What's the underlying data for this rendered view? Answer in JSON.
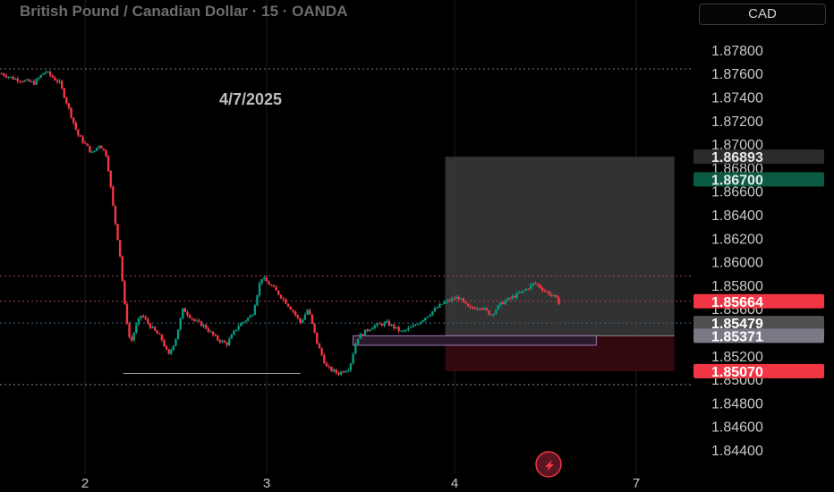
{
  "header": {
    "title": "British Pound / Canadian Dollar · 15 · OANDA",
    "currency_button": "CAD"
  },
  "annotation": {
    "date_label": "4/7/2025"
  },
  "icons": {
    "flash": "lightning-bolt-icon"
  },
  "colors": {
    "up": "#089981",
    "down": "#f23645",
    "background": "#000000",
    "target_zone": "#3b3b3b",
    "stop_zone": "#3a0a10"
  },
  "chart_data": {
    "type": "candlestick",
    "symbol": "British Pound / Canadian Dollar",
    "interval": "15",
    "source": "OANDA",
    "y_axis": {
      "ylim": [
        1.843,
        1.8885
      ],
      "ticks": [
        "1.84400",
        "1.84600",
        "1.84800",
        "1.85000",
        "1.85200",
        "1.85400",
        "1.85600",
        "1.85800",
        "1.86000",
        "1.86200",
        "1.86400",
        "1.86600",
        "1.86800",
        "1.87000",
        "1.87200",
        "1.87400",
        "1.87600",
        "1.87800"
      ]
    },
    "x_axis": {
      "ticks": [
        {
          "label": "2",
          "day": 2
        },
        {
          "label": "3",
          "day": 3
        },
        {
          "label": "4",
          "day": 4
        },
        {
          "label": "7",
          "day": 5
        }
      ],
      "range_days": [
        1.54,
        5.35
      ]
    },
    "price_labels": [
      {
        "value": "1.86893",
        "price": 1.86893,
        "bg": "#2b2b2b",
        "fg": "#e8e8e8"
      },
      {
        "value": "1.86700",
        "price": 1.867,
        "bg": "#0b5a44",
        "fg": "#e8e8e8"
      },
      {
        "value": "1.85664",
        "price": 1.85664,
        "bg": "#f23645",
        "fg": "#ffffff"
      },
      {
        "value": "1.85479",
        "price": 1.85479,
        "bg": "#505050",
        "fg": "#ffffff"
      },
      {
        "value": "1.85371",
        "price": 1.85371,
        "bg": "#7a7a86",
        "fg": "#ffffff"
      },
      {
        "value": "1.85070",
        "price": 1.8507,
        "bg": "#f23645",
        "fg": "#ffffff"
      }
    ],
    "levels": [
      {
        "price": 1.8764,
        "style": "dotted",
        "color": "#7a7a7a"
      },
      {
        "price": 1.8588,
        "style": "dotted",
        "color": "#9a4a52"
      },
      {
        "price": 1.85664,
        "style": "dotted",
        "color": "#b0404c"
      },
      {
        "price": 1.85479,
        "style": "dotted",
        "color": "#3a6a8a"
      },
      {
        "price": 1.84955,
        "style": "dotted",
        "color": "#8a8a8a"
      }
    ],
    "position": {
      "entry": 1.85371,
      "target": 1.86893,
      "stop": 1.8507,
      "start_day": 3.95,
      "end_day": 5.21
    },
    "zones": [
      {
        "from_day": 3.46,
        "to_day": 4.78,
        "top": 1.85371,
        "bottom": 1.8529,
        "fill": "#2a1a2c",
        "stroke": "#a37ab8"
      }
    ],
    "support_lines": [
      {
        "from_day": 2.21,
        "to_day": 3.18,
        "price": 1.8505
      }
    ],
    "candles_seed": 7,
    "waypoints": [
      [
        1.54,
        1.876
      ],
      [
        1.6,
        1.8756
      ],
      [
        1.72,
        1.8752
      ],
      [
        1.78,
        1.8762
      ],
      [
        1.86,
        1.8752
      ],
      [
        1.9,
        1.8735
      ],
      [
        1.96,
        1.8708
      ],
      [
        2.04,
        1.8692
      ],
      [
        2.08,
        1.87
      ],
      [
        2.12,
        1.869
      ],
      [
        2.16,
        1.864
      ],
      [
        2.19,
        1.861
      ],
      [
        2.22,
        1.856
      ],
      [
        2.25,
        1.853
      ],
      [
        2.28,
        1.8545
      ],
      [
        2.31,
        1.8555
      ],
      [
        2.36,
        1.8545
      ],
      [
        2.42,
        1.8535
      ],
      [
        2.46,
        1.852
      ],
      [
        2.5,
        1.8535
      ],
      [
        2.54,
        1.856
      ],
      [
        2.6,
        1.855
      ],
      [
        2.66,
        1.8545
      ],
      [
        2.72,
        1.8535
      ],
      [
        2.78,
        1.853
      ],
      [
        2.84,
        1.8545
      ],
      [
        2.92,
        1.8555
      ],
      [
        2.97,
        1.8587
      ],
      [
        3.02,
        1.858
      ],
      [
        3.08,
        1.857
      ],
      [
        3.14,
        1.8558
      ],
      [
        3.18,
        1.8548
      ],
      [
        3.22,
        1.856
      ],
      [
        3.27,
        1.853
      ],
      [
        3.32,
        1.851
      ],
      [
        3.38,
        1.8505
      ],
      [
        3.44,
        1.851
      ],
      [
        3.48,
        1.8535
      ],
      [
        3.56,
        1.8545
      ],
      [
        3.64,
        1.8548
      ],
      [
        3.72,
        1.854
      ],
      [
        3.78,
        1.8545
      ],
      [
        3.86,
        1.8555
      ],
      [
        3.94,
        1.8565
      ],
      [
        4.02,
        1.857
      ],
      [
        4.08,
        1.856
      ],
      [
        4.14,
        1.8562
      ],
      [
        4.2,
        1.8555
      ],
      [
        4.26,
        1.8565
      ],
      [
        4.32,
        1.857
      ],
      [
        4.38,
        1.8575
      ],
      [
        4.44,
        1.8582
      ],
      [
        4.5,
        1.8575
      ],
      [
        4.55,
        1.857
      ],
      [
        4.58,
        1.8564
      ]
    ]
  }
}
